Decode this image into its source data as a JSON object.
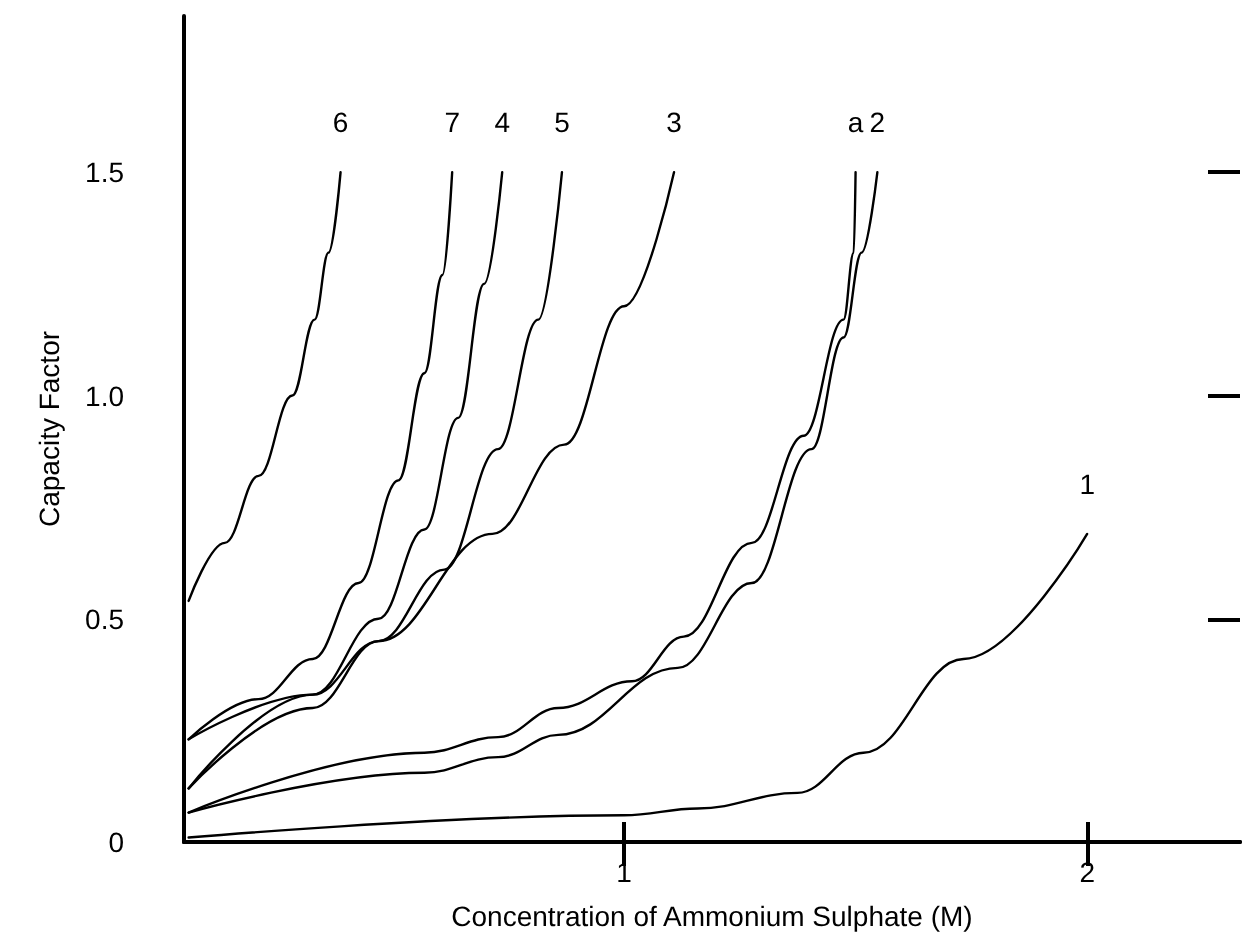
{
  "chart_data": {
    "type": "line",
    "xlabel": "Concentration of Ammonium Sulphate (M)",
    "ylabel": "Capacity Factor",
    "xlim": [
      0.05,
      2.33
    ],
    "ylim": [
      0,
      1.85
    ],
    "xticks": [
      1,
      2
    ],
    "yticks": [
      0,
      0.5,
      {
        "value": 1,
        "label": "1.0"
      },
      1.5
    ],
    "grid": false,
    "marker": "none",
    "line_style": "solid",
    "series": [
      {
        "name": "6",
        "color": "#000000",
        "x": [
          0.06,
          0.138,
          0.211,
          0.284,
          0.332,
          0.362,
          0.388
        ],
        "values": [
          0.54,
          0.67,
          0.82,
          1.0,
          1.17,
          1.32,
          1.5
        ]
      },
      {
        "name": "7",
        "color": "#000000",
        "x": [
          0.06,
          0.211,
          0.328,
          0.427,
          0.513,
          0.569,
          0.608,
          0.629
        ],
        "values": [
          0.23,
          0.32,
          0.41,
          0.58,
          0.81,
          1.05,
          1.27,
          1.5
        ]
      },
      {
        "name": "4",
        "color": "#000000",
        "x": [
          0.06,
          0.328,
          0.47,
          0.569,
          0.642,
          0.698,
          0.737
        ],
        "values": [
          0.12,
          0.33,
          0.5,
          0.7,
          0.95,
          1.25,
          1.5
        ]
      },
      {
        "name": "5",
        "color": "#000000",
        "x": [
          0.06,
          0.328,
          0.47,
          0.612,
          0.728,
          0.815,
          0.866
        ],
        "values": [
          0.12,
          0.3,
          0.45,
          0.61,
          0.88,
          1.17,
          1.5
        ]
      },
      {
        "name": "3",
        "color": "#000000",
        "x": [
          0.06,
          0.328,
          0.47,
          0.716,
          0.871,
          1.0,
          1.108
        ],
        "values": [
          0.23,
          0.33,
          0.45,
          0.69,
          0.89,
          1.2,
          1.5
        ]
      },
      {
        "name": "a",
        "color": "#000000",
        "x": [
          0.06,
          0.569,
          0.728,
          0.858,
          1.017,
          1.129,
          1.276,
          1.388,
          1.474,
          1.496,
          1.5
        ],
        "values": [
          0.066,
          0.2,
          0.235,
          0.3,
          0.36,
          0.46,
          0.67,
          0.91,
          1.17,
          1.32,
          1.5
        ]
      },
      {
        "name": "2",
        "color": "#000000",
        "x": [
          0.06,
          0.569,
          0.728,
          0.858,
          1.116,
          1.276,
          1.405,
          1.474,
          1.513,
          1.547
        ],
        "values": [
          0.066,
          0.155,
          0.19,
          0.24,
          0.39,
          0.58,
          0.88,
          1.13,
          1.32,
          1.5
        ]
      },
      {
        "name": "1",
        "color": "#000000",
        "x": [
          0.06,
          1.0,
          1.159,
          1.375,
          1.517,
          1.733,
          2.0
        ],
        "values": [
          0.01,
          0.06,
          0.075,
          0.11,
          0.2,
          0.41,
          0.69
        ]
      }
    ]
  }
}
